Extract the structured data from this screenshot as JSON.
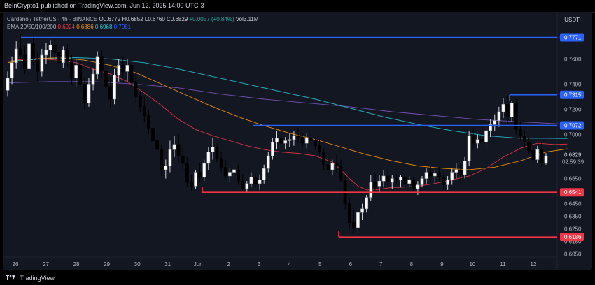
{
  "header": {
    "published": "BeInCrypto1 published on TradingView.com, Jun 12, 2025 14:00 UTC-3"
  },
  "legend": {
    "symbol": "Cardano / TetherUS · 4h · BINANCE",
    "ohlc": "O0.6772 H0.6852 L0.6760 C0.6829",
    "change": "+0.0057 (+0.84%)",
    "volume": "Vol3.11M",
    "ema_label": "EMA 20/50/100/200",
    "ema20": "0.6924",
    "ema50": "0.6886",
    "ema100": "0.6968",
    "ema200": "0.7081"
  },
  "currency": "USDT",
  "footer": {
    "brand": "TradingView"
  },
  "colors": {
    "up": "#ffffff",
    "down": "#000000",
    "ema20": "#f23645",
    "ema50": "#ff9800",
    "ema100": "#26c6da",
    "ema200": "#7e57c2",
    "resistance": "#2962ff",
    "support": "#f23645"
  },
  "chart_data": {
    "type": "candlestick",
    "x_labels": [
      "26",
      "27",
      "28",
      "29",
      "30",
      "31",
      "Jun",
      "2",
      "3",
      "4",
      "5",
      "6",
      "7",
      "8",
      "9",
      "10",
      "11",
      "12"
    ],
    "y_ticks": [
      "0.7600",
      "0.7400",
      "0.7200",
      "0.7000",
      "0.6650",
      "0.6450",
      "0.6350",
      "0.6250",
      "0.6150",
      "0.6050"
    ],
    "ylim": [
      0.6015,
      0.7835
    ],
    "last_price": "0.6829",
    "countdown": "02:59:39",
    "levels": {
      "resistance": [
        0.7771,
        0.7315,
        0.7072
      ],
      "support": [
        0.6541,
        0.6186
      ]
    },
    "candles": [
      [
        0.735,
        0.75,
        0.73,
        0.745
      ],
      [
        0.745,
        0.762,
        0.74,
        0.757
      ],
      [
        0.757,
        0.774,
        0.752,
        0.768
      ],
      [
        0.768,
        0.78,
        0.76,
        0.763
      ],
      [
        0.763,
        0.77,
        0.748,
        0.752
      ],
      [
        0.752,
        0.775,
        0.749,
        0.772
      ],
      [
        0.772,
        0.778,
        0.755,
        0.76
      ],
      [
        0.76,
        0.766,
        0.742,
        0.75
      ],
      [
        0.75,
        0.768,
        0.746,
        0.763
      ],
      [
        0.763,
        0.773,
        0.756,
        0.767
      ],
      [
        0.767,
        0.775,
        0.76,
        0.771
      ],
      [
        0.771,
        0.776,
        0.76,
        0.765
      ],
      [
        0.765,
        0.768,
        0.752,
        0.757
      ],
      [
        0.757,
        0.77,
        0.753,
        0.767
      ],
      [
        0.767,
        0.772,
        0.754,
        0.758
      ],
      [
        0.758,
        0.763,
        0.74,
        0.745
      ],
      [
        0.745,
        0.76,
        0.738,
        0.755
      ],
      [
        0.755,
        0.758,
        0.735,
        0.74
      ],
      [
        0.74,
        0.745,
        0.72,
        0.725
      ],
      [
        0.725,
        0.745,
        0.722,
        0.74
      ],
      [
        0.74,
        0.752,
        0.735,
        0.748
      ],
      [
        0.748,
        0.766,
        0.744,
        0.762
      ],
      [
        0.762,
        0.767,
        0.745,
        0.75
      ],
      [
        0.75,
        0.757,
        0.733,
        0.738
      ],
      [
        0.738,
        0.745,
        0.722,
        0.728
      ],
      [
        0.728,
        0.752,
        0.724,
        0.747
      ],
      [
        0.747,
        0.76,
        0.742,
        0.755
      ],
      [
        0.755,
        0.762,
        0.745,
        0.75
      ],
      [
        0.75,
        0.76,
        0.742,
        0.755
      ],
      [
        0.755,
        0.757,
        0.738,
        0.742
      ],
      [
        0.742,
        0.748,
        0.725,
        0.73
      ],
      [
        0.73,
        0.735,
        0.718,
        0.722
      ],
      [
        0.722,
        0.73,
        0.71,
        0.715
      ],
      [
        0.715,
        0.72,
        0.7,
        0.705
      ],
      [
        0.705,
        0.712,
        0.69,
        0.695
      ],
      [
        0.695,
        0.7,
        0.684,
        0.688
      ],
      [
        0.688,
        0.692,
        0.667,
        0.672
      ],
      [
        0.672,
        0.68,
        0.665,
        0.675
      ],
      [
        0.675,
        0.695,
        0.67,
        0.688
      ],
      [
        0.688,
        0.699,
        0.682,
        0.692
      ],
      [
        0.692,
        0.7,
        0.678,
        0.683
      ],
      [
        0.683,
        0.69,
        0.672,
        0.677
      ],
      [
        0.677,
        0.682,
        0.658,
        0.662
      ],
      [
        0.662,
        0.668,
        0.655,
        0.659
      ],
      [
        0.659,
        0.672,
        0.657,
        0.67
      ],
      [
        0.67,
        0.677,
        0.662,
        0.666
      ],
      [
        0.666,
        0.68,
        0.663,
        0.677
      ],
      [
        0.677,
        0.69,
        0.672,
        0.686
      ],
      [
        0.686,
        0.697,
        0.68,
        0.69
      ],
      [
        0.69,
        0.693,
        0.678,
        0.681
      ],
      [
        0.681,
        0.686,
        0.67,
        0.674
      ],
      [
        0.674,
        0.68,
        0.664,
        0.667
      ],
      [
        0.667,
        0.673,
        0.662,
        0.67
      ],
      [
        0.67,
        0.678,
        0.666,
        0.672
      ],
      [
        0.672,
        0.676,
        0.66,
        0.663
      ],
      [
        0.663,
        0.668,
        0.654,
        0.657
      ],
      [
        0.657,
        0.663,
        0.654,
        0.661
      ],
      [
        0.661,
        0.67,
        0.658,
        0.666
      ],
      [
        0.666,
        0.669,
        0.658,
        0.661
      ],
      [
        0.661,
        0.668,
        0.656,
        0.664
      ],
      [
        0.664,
        0.676,
        0.661,
        0.673
      ],
      [
        0.673,
        0.686,
        0.67,
        0.683
      ],
      [
        0.683,
        0.697,
        0.68,
        0.694
      ],
      [
        0.694,
        0.703,
        0.688,
        0.697
      ],
      [
        0.697,
        0.7,
        0.69,
        0.693
      ],
      [
        0.693,
        0.698,
        0.688,
        0.695
      ],
      [
        0.695,
        0.701,
        0.69,
        0.696
      ],
      [
        0.696,
        0.703,
        0.691,
        0.699
      ],
      [
        0.699,
        0.705,
        0.693,
        0.698
      ],
      [
        0.698,
        0.701,
        0.69,
        0.693
      ],
      [
        0.693,
        0.701,
        0.689,
        0.697
      ],
      [
        0.697,
        0.701,
        0.692,
        0.695
      ],
      [
        0.695,
        0.698,
        0.688,
        0.691
      ],
      [
        0.691,
        0.696,
        0.682,
        0.686
      ],
      [
        0.686,
        0.689,
        0.672,
        0.676
      ],
      [
        0.676,
        0.683,
        0.668,
        0.672
      ],
      [
        0.672,
        0.68,
        0.668,
        0.677
      ],
      [
        0.677,
        0.684,
        0.67,
        0.675
      ],
      [
        0.675,
        0.68,
        0.662,
        0.664
      ],
      [
        0.664,
        0.668,
        0.64,
        0.645
      ],
      [
        0.645,
        0.65,
        0.625,
        0.63
      ],
      [
        0.63,
        0.64,
        0.622,
        0.626
      ],
      [
        0.626,
        0.64,
        0.622,
        0.638
      ],
      [
        0.638,
        0.645,
        0.632,
        0.641
      ],
      [
        0.641,
        0.652,
        0.638,
        0.65
      ],
      [
        0.65,
        0.668,
        0.647,
        0.662
      ],
      [
        0.662,
        0.67,
        0.655,
        0.659
      ],
      [
        0.659,
        0.668,
        0.654,
        0.663
      ],
      [
        0.663,
        0.672,
        0.658,
        0.667
      ],
      [
        0.667,
        0.671,
        0.659,
        0.662
      ],
      [
        0.662,
        0.668,
        0.657,
        0.665
      ],
      [
        0.665,
        0.669,
        0.66,
        0.664
      ],
      [
        0.664,
        0.668,
        0.658,
        0.666
      ],
      [
        0.666,
        0.667,
        0.657,
        0.661
      ],
      [
        0.661,
        0.667,
        0.658,
        0.664
      ],
      [
        0.664,
        0.666,
        0.653,
        0.657
      ],
      [
        0.657,
        0.663,
        0.652,
        0.66
      ],
      [
        0.66,
        0.667,
        0.658,
        0.665
      ],
      [
        0.665,
        0.673,
        0.661,
        0.67
      ],
      [
        0.67,
        0.675,
        0.662,
        0.667
      ],
      [
        0.667,
        0.672,
        0.661,
        0.669
      ],
      [
        0.669,
        0.674,
        0.662,
        0.666
      ],
      [
        0.666,
        0.668,
        0.657,
        0.66
      ],
      [
        0.66,
        0.667,
        0.656,
        0.664
      ],
      [
        0.664,
        0.673,
        0.66,
        0.67
      ],
      [
        0.67,
        0.677,
        0.665,
        0.672
      ],
      [
        0.672,
        0.677,
        0.663,
        0.668
      ],
      [
        0.668,
        0.682,
        0.665,
        0.679
      ],
      [
        0.679,
        0.703,
        0.675,
        0.699
      ],
      [
        0.699,
        0.705,
        0.689,
        0.693
      ],
      [
        0.693,
        0.7,
        0.689,
        0.696
      ],
      [
        0.696,
        0.701,
        0.689,
        0.694
      ],
      [
        0.694,
        0.707,
        0.69,
        0.703
      ],
      [
        0.703,
        0.712,
        0.698,
        0.708
      ],
      [
        0.708,
        0.716,
        0.703,
        0.711
      ],
      [
        0.711,
        0.722,
        0.706,
        0.718
      ],
      [
        0.718,
        0.729,
        0.713,
        0.724
      ],
      [
        0.724,
        0.731,
        0.709,
        0.714
      ],
      [
        0.714,
        0.727,
        0.71,
        0.725
      ],
      [
        0.725,
        0.728,
        0.7,
        0.704
      ],
      [
        0.704,
        0.71,
        0.695,
        0.699
      ],
      [
        0.699,
        0.703,
        0.69,
        0.694
      ],
      [
        0.694,
        0.697,
        0.684,
        0.687
      ],
      [
        0.687,
        0.692,
        0.677,
        0.68
      ],
      [
        0.68,
        0.691,
        0.677,
        0.688
      ],
      [
        0.688,
        0.693,
        0.674,
        0.677
      ],
      [
        0.6772,
        0.6852,
        0.676,
        0.6829
      ]
    ],
    "ema": {
      "ema20": [
        [
          0,
          0.758
        ],
        [
          4,
          0.76
        ],
        [
          8,
          0.76
        ],
        [
          12,
          0.759
        ],
        [
          16,
          0.757
        ],
        [
          20,
          0.752
        ],
        [
          24,
          0.748
        ],
        [
          28,
          0.742
        ],
        [
          32,
          0.733
        ],
        [
          36,
          0.723
        ],
        [
          40,
          0.712
        ],
        [
          44,
          0.704
        ],
        [
          48,
          0.699
        ],
        [
          52,
          0.695
        ],
        [
          56,
          0.691
        ],
        [
          60,
          0.688
        ],
        [
          64,
          0.686
        ],
        [
          68,
          0.685
        ],
        [
          72,
          0.683
        ],
        [
          76,
          0.678
        ],
        [
          78,
          0.672
        ],
        [
          80,
          0.665
        ],
        [
          82,
          0.659
        ],
        [
          84,
          0.656
        ],
        [
          86,
          0.656
        ],
        [
          88,
          0.657
        ],
        [
          90,
          0.658
        ],
        [
          92,
          0.658
        ],
        [
          96,
          0.659
        ],
        [
          100,
          0.661
        ],
        [
          104,
          0.664
        ],
        [
          108,
          0.667
        ],
        [
          112,
          0.673
        ],
        [
          116,
          0.682
        ],
        [
          120,
          0.689
        ],
        [
          124,
          0.693
        ],
        [
          128,
          0.692
        ],
        [
          131,
          0.6924
        ]
      ],
      "ema50": [
        [
          0,
          0.757
        ],
        [
          6,
          0.76
        ],
        [
          12,
          0.761
        ],
        [
          18,
          0.759
        ],
        [
          24,
          0.755
        ],
        [
          30,
          0.749
        ],
        [
          36,
          0.74
        ],
        [
          42,
          0.731
        ],
        [
          48,
          0.722
        ],
        [
          54,
          0.714
        ],
        [
          60,
          0.707
        ],
        [
          66,
          0.701
        ],
        [
          72,
          0.696
        ],
        [
          78,
          0.69
        ],
        [
          84,
          0.684
        ],
        [
          90,
          0.679
        ],
        [
          96,
          0.675
        ],
        [
          102,
          0.673
        ],
        [
          108,
          0.672
        ],
        [
          114,
          0.674
        ],
        [
          120,
          0.679
        ],
        [
          126,
          0.686
        ],
        [
          131,
          0.6886
        ]
      ],
      "ema100": [
        [
          0,
          0.758
        ],
        [
          8,
          0.76
        ],
        [
          16,
          0.761
        ],
        [
          24,
          0.76
        ],
        [
          32,
          0.757
        ],
        [
          40,
          0.752
        ],
        [
          48,
          0.746
        ],
        [
          56,
          0.74
        ],
        [
          64,
          0.734
        ],
        [
          72,
          0.728
        ],
        [
          80,
          0.721
        ],
        [
          88,
          0.714
        ],
        [
          96,
          0.708
        ],
        [
          104,
          0.703
        ],
        [
          112,
          0.699
        ],
        [
          120,
          0.697
        ],
        [
          126,
          0.697
        ],
        [
          131,
          0.6968
        ]
      ],
      "ema200": [
        [
          0,
          0.741
        ],
        [
          10,
          0.742
        ],
        [
          20,
          0.742
        ],
        [
          30,
          0.74
        ],
        [
          40,
          0.737
        ],
        [
          50,
          0.732
        ],
        [
          60,
          0.728
        ],
        [
          70,
          0.725
        ],
        [
          80,
          0.722
        ],
        [
          90,
          0.718
        ],
        [
          100,
          0.715
        ],
        [
          110,
          0.712
        ],
        [
          120,
          0.71
        ],
        [
          126,
          0.709
        ],
        [
          131,
          0.7081
        ]
      ]
    }
  }
}
